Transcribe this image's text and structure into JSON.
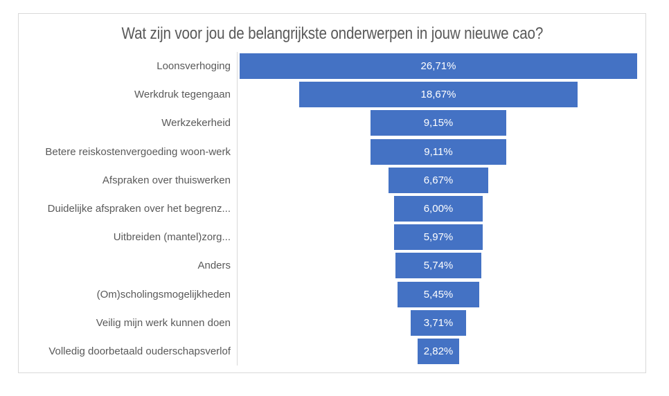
{
  "chart_data": {
    "type": "bar",
    "subtype": "funnel",
    "title": "Wat zijn voor jou de belangrijkste onderwerpen in jouw nieuwe cao?",
    "orientation": "horizontal-centered",
    "categories": [
      "Loonsverhoging",
      "Werkdruk tegengaan",
      "Werkzekerheid",
      "Betere reiskostenvergoeding woon-werk",
      "Afspraken over thuiswerken",
      "Duidelijke afspraken over het begrenz...",
      "Uitbreiden (mantel)zorg...",
      "Anders",
      "(Om)scholingsmogelijkheden",
      "Veilig mijn werk kunnen doen",
      "Volledig doorbetaald ouderschapsverlof"
    ],
    "values": [
      26.71,
      18.67,
      9.15,
      9.11,
      6.67,
      6.0,
      5.97,
      5.74,
      5.45,
      3.71,
      2.82
    ],
    "value_labels": [
      "26,71%",
      "18,67%",
      "9,15%",
      "9,11%",
      "6,67%",
      "6,00%",
      "5,97%",
      "5,74%",
      "5,45%",
      "3,71%",
      "2,82%"
    ],
    "xlim": [
      0,
      27
    ],
    "xlabel": "",
    "ylabel": "",
    "grid": false,
    "legend": "none",
    "bar_color": "#4472C4",
    "value_label_color": "#FFFFFF",
    "category_label_color": "#595959",
    "title_color": "#595959",
    "axis_line_color": "#D9D9D9",
    "frame_border_color": "#D9D9D9",
    "background_color": "#FFFFFF"
  }
}
